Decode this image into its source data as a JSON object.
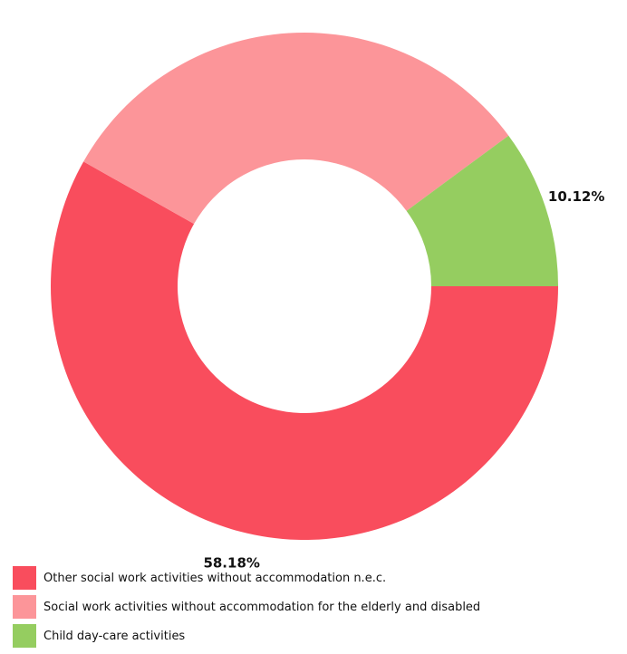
{
  "chart_data": {
    "type": "pie",
    "style": "donut",
    "title": "",
    "slices": [
      {
        "name": "Other social work activities without accommodation n.e.c.",
        "value": 58.18,
        "label": "58.18%",
        "color": "#f94d5d"
      },
      {
        "name": "Social work activities without accommodation for the elderly and disabled",
        "value": 31.7,
        "label": "",
        "color": "#fc9599"
      },
      {
        "name": "Child day-care activities",
        "value": 10.12,
        "label": "10.12%",
        "color": "#95cd60"
      }
    ],
    "legend_position": "bottom-left"
  }
}
